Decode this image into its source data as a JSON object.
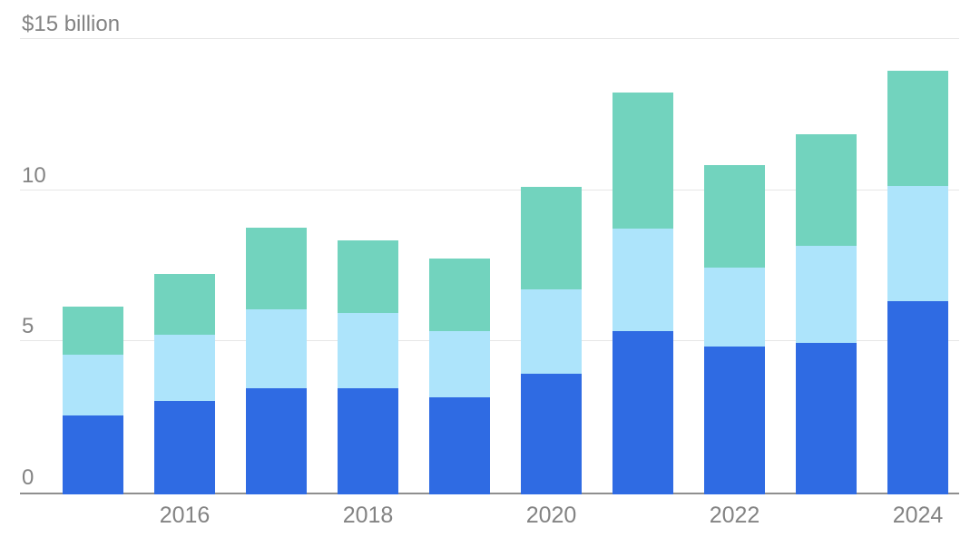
{
  "chart": {
    "background_color": "#ffffff",
    "label_text_color": "#838383",
    "grid_color": "#e7e7e7",
    "axis_line_color": "#8f8f8f"
  },
  "chart_data": {
    "type": "bar",
    "stacked": true,
    "unit": "billions of dollars",
    "grid": true,
    "legend": "none",
    "ylim": [
      0,
      15
    ],
    "yticks": [
      {
        "value": 0,
        "label": "0"
      },
      {
        "value": 5,
        "label": "5"
      },
      {
        "value": 10,
        "label": "10"
      },
      {
        "value": 15,
        "label": "$15 billion"
      }
    ],
    "categories": [
      2015,
      2016,
      2017,
      2018,
      2019,
      2020,
      2021,
      2022,
      2023,
      2024
    ],
    "xtick_labels": [
      "2016",
      "2018",
      "2020",
      "2022",
      "2024"
    ],
    "series": [
      {
        "name": "blue",
        "color": "#2F6BE3",
        "values": [
          2.6,
          3.1,
          3.5,
          3.5,
          3.2,
          4.0,
          5.4,
          4.9,
          5.0,
          6.4
        ]
      },
      {
        "name": "light-blue",
        "color": "#ADE4FB",
        "values": [
          2.0,
          2.2,
          2.6,
          2.5,
          2.2,
          2.8,
          3.4,
          2.6,
          3.2,
          3.8
        ]
      },
      {
        "name": "teal",
        "color": "#72D3BE",
        "values": [
          1.6,
          2.0,
          2.7,
          2.4,
          2.4,
          3.4,
          4.5,
          3.4,
          3.7,
          3.8
        ]
      }
    ],
    "totals": [
      6.2,
      7.3,
      8.8,
      8.4,
      7.8,
      10.2,
      13.3,
      10.9,
      11.9,
      14.0
    ]
  }
}
